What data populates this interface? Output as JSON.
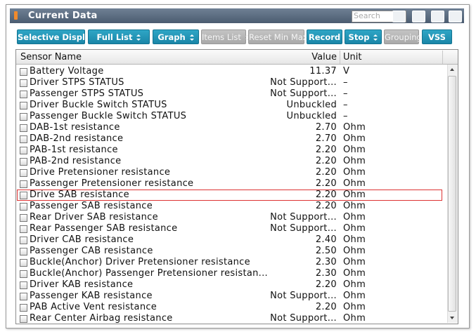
{
  "window": {
    "title": "Current Data",
    "search_placeholder": "Search"
  },
  "toolbar": [
    {
      "label": "Selective Display",
      "dropdown": true,
      "enabled": true
    },
    {
      "label": "Full List",
      "dropdown": true,
      "enabled": true
    },
    {
      "label": "Graph",
      "dropdown": true,
      "enabled": true
    },
    {
      "label": "Items List",
      "dropdown": true,
      "enabled": false
    },
    {
      "label": "Reset Min Max",
      "dropdown": false,
      "enabled": false
    },
    {
      "label": "Record",
      "dropdown": false,
      "enabled": true
    },
    {
      "label": "Stop",
      "dropdown": true,
      "enabled": true
    },
    {
      "label": "Grouping",
      "dropdown": false,
      "enabled": false
    },
    {
      "label": "VSS",
      "dropdown": false,
      "enabled": true
    }
  ],
  "table": {
    "columns": [
      "Sensor Name",
      "Value",
      "Unit"
    ],
    "selected_row": 11,
    "rows": [
      [
        "Battery Voltage",
        "11.37",
        "V"
      ],
      [
        "Driver STPS STATUS",
        "Not Support...",
        "–"
      ],
      [
        "Passenger STPS STATUS",
        "Not Support...",
        "–"
      ],
      [
        "Driver Buckle Switch STATUS",
        "Unbuckled",
        "–"
      ],
      [
        "Passenger Buckle Switch STATUS",
        "Unbuckled",
        "–"
      ],
      [
        "DAB-1st resistance",
        "2.70",
        "Ohm"
      ],
      [
        "DAB-2nd resistance",
        "2.70",
        "Ohm"
      ],
      [
        "PAB-1st resistance",
        "2.20",
        "Ohm"
      ],
      [
        "PAB-2nd resistance",
        "2.20",
        "Ohm"
      ],
      [
        "Drive Pretensioner resistance",
        "2.20",
        "Ohm"
      ],
      [
        "Passenger Pretensioner resistance",
        "2.20",
        "Ohm"
      ],
      [
        "Drive SAB resistance",
        "2.20",
        "Ohm"
      ],
      [
        "Passenger SAB resistance",
        "2.20",
        "Ohm"
      ],
      [
        "Rear Driver SAB resistance",
        "Not Support...",
        "Ohm"
      ],
      [
        "Rear Passenger SAB resistance",
        "Not Support...",
        "Ohm"
      ],
      [
        "Driver CAB resistance",
        "2.40",
        "Ohm"
      ],
      [
        "Passenger CAB resistance",
        "2.50",
        "Ohm"
      ],
      [
        "Buckle(Anchor) Driver Pretensioner resistance",
        "2.30",
        "Ohm"
      ],
      [
        "Buckle(Anchor) Passenger Pretensioner resistan...",
        "2.30",
        "Ohm"
      ],
      [
        "Driver KAB resistance",
        "2.20",
        "Ohm"
      ],
      [
        "Passenger KAB resistance",
        "Not Support...",
        "Ohm"
      ],
      [
        "PAB Active Vent resistance",
        "2.20",
        "Ohm"
      ],
      [
        "Rear Center Airbag resistance",
        "Not Support...",
        "Ohm"
      ]
    ]
  }
}
